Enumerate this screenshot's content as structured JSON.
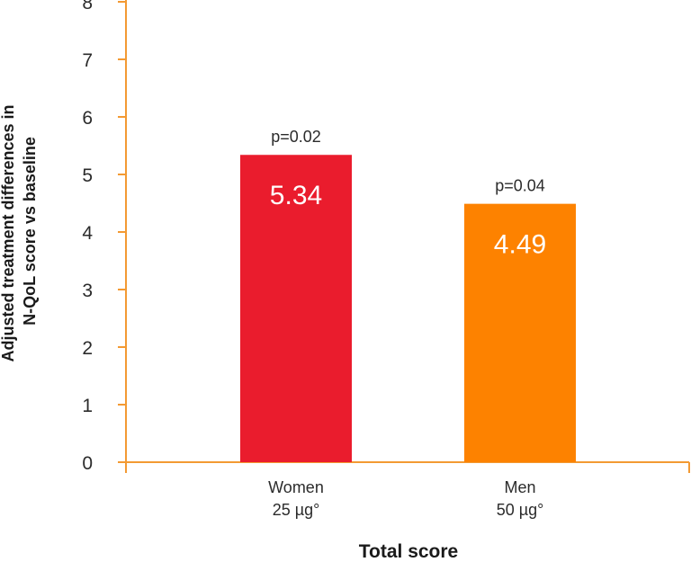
{
  "chart_data": {
    "type": "bar",
    "categories": [
      {
        "line1": "Women",
        "line2": "25 µg°"
      },
      {
        "line1": "Men",
        "line2": "50 µg°"
      }
    ],
    "values": [
      5.34,
      4.49
    ],
    "value_labels": [
      "5.34",
      "4.49"
    ],
    "annotations": [
      "p=0.02",
      "p=0.04"
    ],
    "bar_colors": [
      "#ea1c2d",
      "#fd8200"
    ],
    "axis_color": "#f39a33",
    "xlabel": "Total score",
    "ylabel_lines": [
      "Adjusted treatment differences in",
      "N-QoL score vs baseline"
    ],
    "ylim": [
      0,
      8
    ],
    "yticks": [
      "0",
      "1",
      "2",
      "3",
      "4",
      "5",
      "6",
      "7",
      "8"
    ],
    "grid": false,
    "legend": "none"
  }
}
